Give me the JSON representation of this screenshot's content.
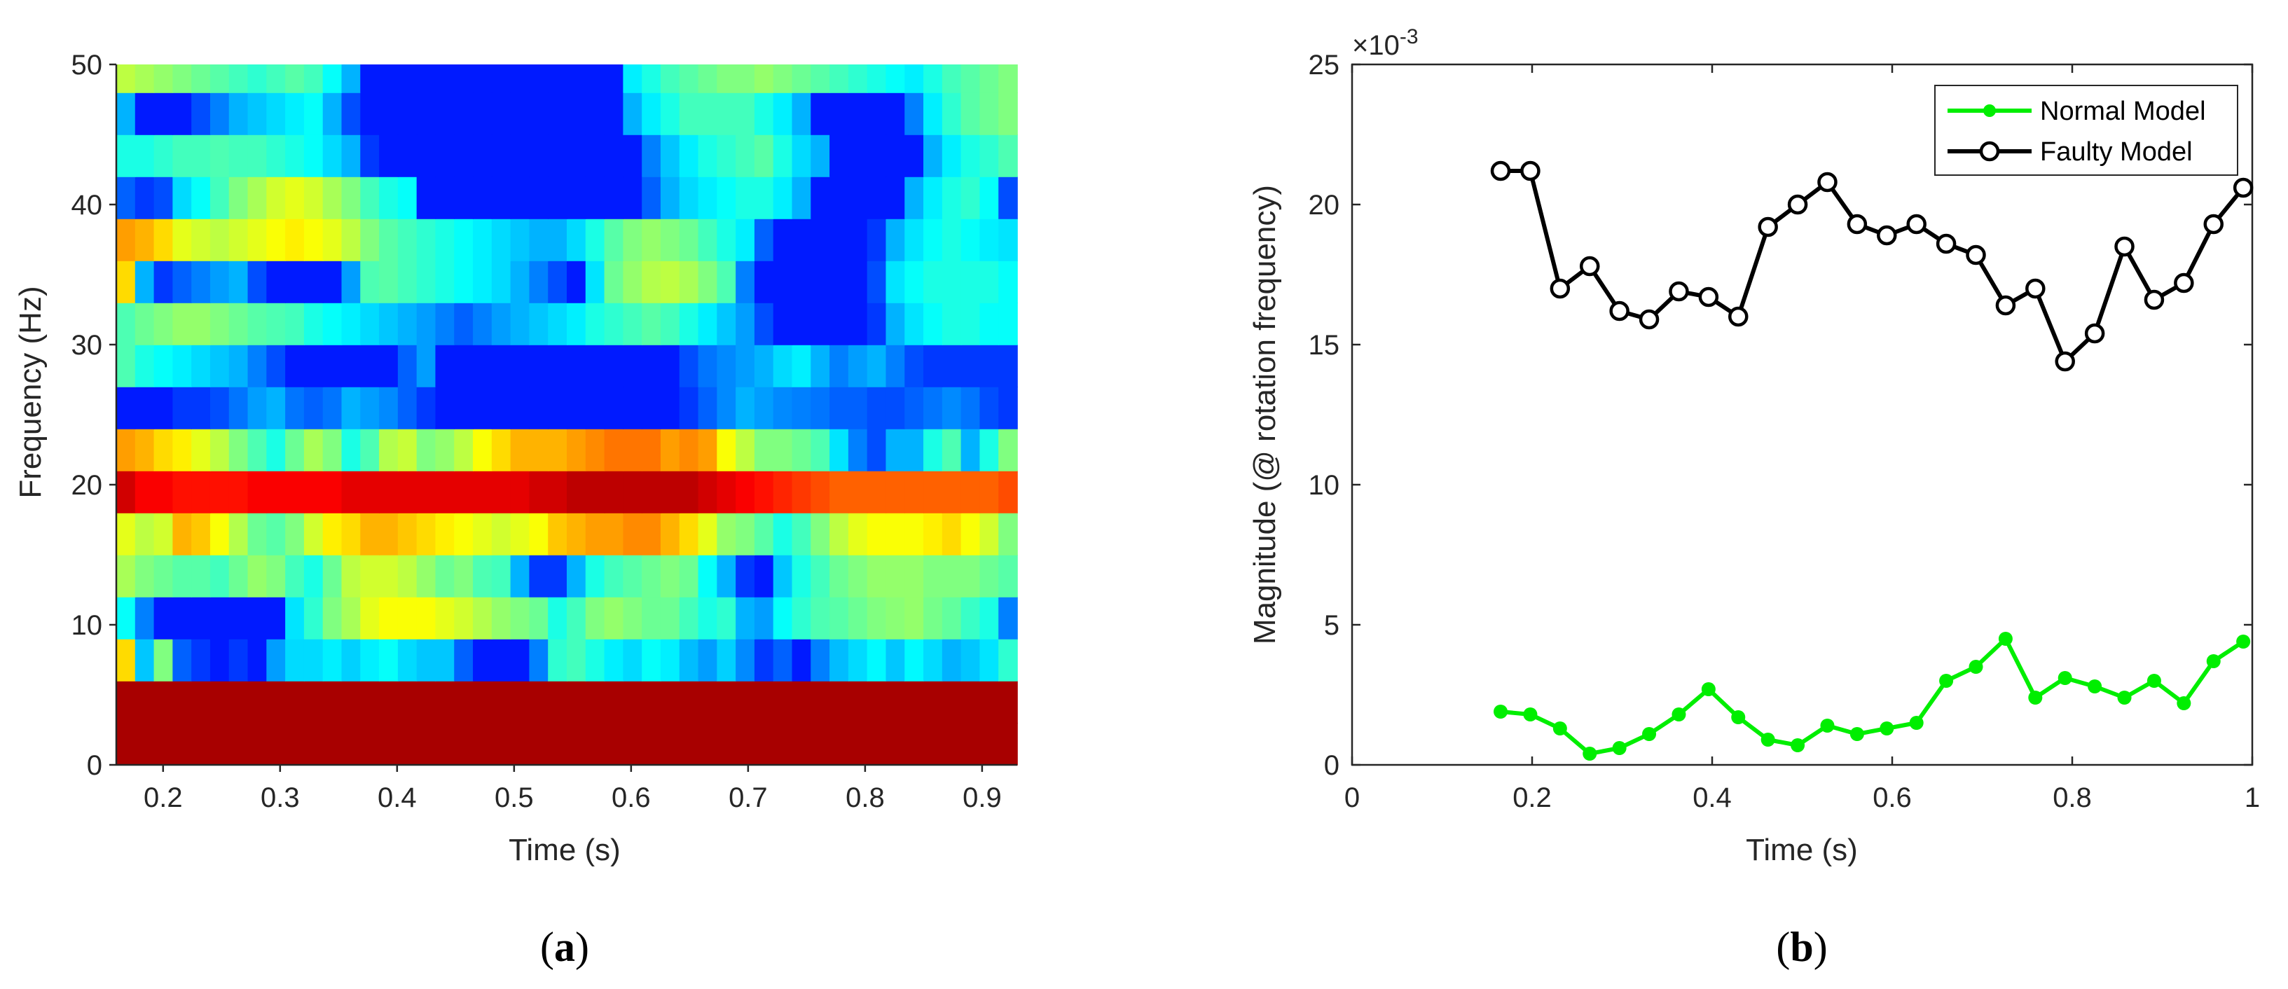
{
  "chart_data": [
    {
      "type": "heatmap",
      "panel_label": "a",
      "title": "",
      "xlabel": "Time (s)",
      "ylabel": "Frequency (Hz)",
      "xlim": [
        0.16,
        0.93
      ],
      "ylim": [
        0,
        50
      ],
      "xticks": [
        0.2,
        0.3,
        0.4,
        0.5,
        0.6,
        0.7,
        0.8,
        0.9
      ],
      "yticks": [
        0,
        10,
        20,
        30,
        40,
        50
      ],
      "xtick_labels": [
        "0.2",
        "0.3",
        "0.4",
        "0.5",
        "0.6",
        "0.7",
        "0.8",
        "0.9"
      ],
      "ytick_labels": [
        "0",
        "10",
        "20",
        "30",
        "40",
        "50"
      ],
      "colormap": "jet",
      "value_range": [
        0,
        1
      ],
      "row_centers_hz": [
        1.5,
        4.5,
        7.5,
        10.5,
        13.5,
        16.5,
        19.5,
        22.5,
        25.5,
        28.5,
        31.5,
        34.5,
        37.5,
        40.5,
        43.5,
        46.5,
        49.5
      ],
      "rows_low_to_high_freq": [
        [
          0.96,
          0.96,
          0.96,
          0.96,
          0.96,
          0.96,
          0.96,
          0.96,
          0.96,
          0.96,
          0.96,
          0.96,
          0.96,
          0.96,
          0.96,
          0.96,
          0.96,
          0.96,
          0.96,
          0.96,
          0.96,
          0.96,
          0.96,
          0.96,
          0.96,
          0.96,
          0.96,
          0.96,
          0.96,
          0.96,
          0.96,
          0.96,
          0.96,
          0.96,
          0.96,
          0.96,
          0.96,
          0.96,
          0.96,
          0.96,
          0.96,
          0.96,
          0.96,
          0.96,
          0.96,
          0.96,
          0.96,
          0.96
        ],
        [
          0.96,
          0.96,
          0.96,
          0.96,
          0.96,
          0.96,
          0.96,
          0.96,
          0.96,
          0.96,
          0.96,
          0.96,
          0.96,
          0.96,
          0.96,
          0.96,
          0.96,
          0.96,
          0.96,
          0.96,
          0.96,
          0.96,
          0.96,
          0.96,
          0.96,
          0.96,
          0.96,
          0.96,
          0.96,
          0.96,
          0.96,
          0.96,
          0.96,
          0.96,
          0.96,
          0.96,
          0.96,
          0.96,
          0.96,
          0.96,
          0.96,
          0.96,
          0.96,
          0.96,
          0.96,
          0.96,
          0.96,
          0.96
        ],
        [
          0.66,
          0.32,
          0.5,
          0.22,
          0.18,
          0.15,
          0.18,
          0.15,
          0.28,
          0.34,
          0.34,
          0.36,
          0.33,
          0.36,
          0.38,
          0.34,
          0.32,
          0.32,
          0.22,
          0.15,
          0.15,
          0.15,
          0.25,
          0.42,
          0.44,
          0.4,
          0.36,
          0.34,
          0.38,
          0.36,
          0.31,
          0.28,
          0.33,
          0.26,
          0.18,
          0.22,
          0.15,
          0.25,
          0.31,
          0.34,
          0.37,
          0.32,
          0.37,
          0.34,
          0.3,
          0.32,
          0.35,
          0.42
        ],
        [
          0.38,
          0.25,
          0.15,
          0.15,
          0.15,
          0.15,
          0.15,
          0.15,
          0.15,
          0.35,
          0.42,
          0.5,
          0.54,
          0.6,
          0.62,
          0.62,
          0.62,
          0.6,
          0.58,
          0.55,
          0.52,
          0.5,
          0.48,
          0.4,
          0.44,
          0.5,
          0.52,
          0.5,
          0.48,
          0.48,
          0.44,
          0.4,
          0.42,
          0.3,
          0.28,
          0.38,
          0.42,
          0.45,
          0.46,
          0.48,
          0.5,
          0.51,
          0.52,
          0.49,
          0.47,
          0.43,
          0.4,
          0.25
        ],
        [
          0.54,
          0.5,
          0.48,
          0.46,
          0.46,
          0.44,
          0.48,
          0.52,
          0.5,
          0.44,
          0.4,
          0.48,
          0.56,
          0.58,
          0.58,
          0.56,
          0.52,
          0.48,
          0.5,
          0.45,
          0.44,
          0.3,
          0.18,
          0.18,
          0.3,
          0.4,
          0.44,
          0.46,
          0.48,
          0.5,
          0.48,
          0.38,
          0.3,
          0.18,
          0.15,
          0.32,
          0.4,
          0.44,
          0.48,
          0.5,
          0.52,
          0.52,
          0.52,
          0.5,
          0.5,
          0.5,
          0.48,
          0.46
        ],
        [
          0.6,
          0.56,
          0.58,
          0.7,
          0.68,
          0.62,
          0.55,
          0.48,
          0.46,
          0.5,
          0.58,
          0.64,
          0.66,
          0.7,
          0.7,
          0.68,
          0.66,
          0.64,
          0.62,
          0.6,
          0.58,
          0.6,
          0.62,
          0.68,
          0.7,
          0.72,
          0.72,
          0.74,
          0.74,
          0.7,
          0.66,
          0.6,
          0.52,
          0.5,
          0.46,
          0.4,
          0.44,
          0.5,
          0.56,
          0.6,
          0.62,
          0.62,
          0.62,
          0.64,
          0.66,
          0.62,
          0.58,
          0.5
        ],
        [
          0.92,
          0.88,
          0.88,
          0.86,
          0.86,
          0.86,
          0.86,
          0.88,
          0.88,
          0.88,
          0.88,
          0.88,
          0.9,
          0.9,
          0.9,
          0.9,
          0.9,
          0.9,
          0.9,
          0.9,
          0.9,
          0.9,
          0.92,
          0.92,
          0.94,
          0.94,
          0.94,
          0.94,
          0.94,
          0.94,
          0.94,
          0.92,
          0.9,
          0.88,
          0.86,
          0.84,
          0.82,
          0.8,
          0.78,
          0.78,
          0.78,
          0.78,
          0.78,
          0.78,
          0.78,
          0.78,
          0.78,
          0.8
        ],
        [
          0.72,
          0.7,
          0.66,
          0.64,
          0.6,
          0.56,
          0.5,
          0.45,
          0.4,
          0.48,
          0.54,
          0.5,
          0.4,
          0.45,
          0.55,
          0.57,
          0.5,
          0.52,
          0.56,
          0.62,
          0.66,
          0.7,
          0.7,
          0.7,
          0.72,
          0.74,
          0.76,
          0.76,
          0.76,
          0.72,
          0.74,
          0.72,
          0.62,
          0.56,
          0.5,
          0.5,
          0.48,
          0.45,
          0.35,
          0.25,
          0.2,
          0.3,
          0.3,
          0.4,
          0.45,
          0.3,
          0.4,
          0.5
        ],
        [
          0.15,
          0.15,
          0.15,
          0.18,
          0.18,
          0.2,
          0.24,
          0.28,
          0.3,
          0.24,
          0.22,
          0.24,
          0.3,
          0.28,
          0.26,
          0.22,
          0.18,
          0.15,
          0.15,
          0.15,
          0.15,
          0.15,
          0.15,
          0.15,
          0.15,
          0.15,
          0.15,
          0.15,
          0.15,
          0.15,
          0.18,
          0.22,
          0.26,
          0.3,
          0.28,
          0.26,
          0.25,
          0.24,
          0.22,
          0.22,
          0.2,
          0.2,
          0.22,
          0.24,
          0.26,
          0.24,
          0.2,
          0.18
        ],
        [
          0.45,
          0.4,
          0.38,
          0.36,
          0.34,
          0.32,
          0.3,
          0.25,
          0.2,
          0.15,
          0.15,
          0.15,
          0.15,
          0.15,
          0.15,
          0.22,
          0.28,
          0.15,
          0.15,
          0.15,
          0.15,
          0.15,
          0.15,
          0.15,
          0.15,
          0.15,
          0.15,
          0.15,
          0.15,
          0.15,
          0.2,
          0.24,
          0.26,
          0.28,
          0.3,
          0.34,
          0.36,
          0.3,
          0.25,
          0.28,
          0.3,
          0.25,
          0.2,
          0.18,
          0.18,
          0.18,
          0.18,
          0.18
        ],
        [
          0.45,
          0.48,
          0.5,
          0.52,
          0.52,
          0.5,
          0.48,
          0.46,
          0.45,
          0.44,
          0.4,
          0.38,
          0.36,
          0.34,
          0.32,
          0.3,
          0.28,
          0.25,
          0.22,
          0.25,
          0.28,
          0.3,
          0.32,
          0.34,
          0.36,
          0.4,
          0.42,
          0.44,
          0.46,
          0.44,
          0.4,
          0.36,
          0.32,
          0.28,
          0.2,
          0.15,
          0.15,
          0.15,
          0.15,
          0.15,
          0.18,
          0.3,
          0.35,
          0.38,
          0.4,
          0.4,
          0.38,
          0.38
        ],
        [
          0.66,
          0.3,
          0.18,
          0.22,
          0.25,
          0.28,
          0.3,
          0.2,
          0.15,
          0.15,
          0.15,
          0.15,
          0.28,
          0.45,
          0.46,
          0.44,
          0.42,
          0.4,
          0.38,
          0.36,
          0.34,
          0.3,
          0.25,
          0.2,
          0.15,
          0.35,
          0.48,
          0.52,
          0.55,
          0.56,
          0.54,
          0.5,
          0.45,
          0.25,
          0.15,
          0.15,
          0.15,
          0.15,
          0.15,
          0.15,
          0.2,
          0.35,
          0.38,
          0.4,
          0.4,
          0.4,
          0.4,
          0.38
        ],
        [
          0.72,
          0.7,
          0.66,
          0.6,
          0.58,
          0.56,
          0.58,
          0.6,
          0.62,
          0.64,
          0.62,
          0.6,
          0.56,
          0.5,
          0.46,
          0.44,
          0.42,
          0.4,
          0.38,
          0.36,
          0.34,
          0.32,
          0.3,
          0.3,
          0.34,
          0.4,
          0.46,
          0.5,
          0.52,
          0.5,
          0.48,
          0.44,
          0.4,
          0.36,
          0.22,
          0.15,
          0.15,
          0.15,
          0.15,
          0.15,
          0.18,
          0.3,
          0.35,
          0.38,
          0.4,
          0.38,
          0.36,
          0.35
        ],
        [
          0.22,
          0.18,
          0.2,
          0.34,
          0.38,
          0.44,
          0.5,
          0.54,
          0.58,
          0.6,
          0.58,
          0.54,
          0.5,
          0.44,
          0.4,
          0.38,
          0.15,
          0.15,
          0.15,
          0.15,
          0.15,
          0.15,
          0.15,
          0.15,
          0.15,
          0.15,
          0.15,
          0.15,
          0.22,
          0.3,
          0.34,
          0.36,
          0.38,
          0.4,
          0.4,
          0.36,
          0.3,
          0.15,
          0.15,
          0.15,
          0.15,
          0.15,
          0.3,
          0.36,
          0.4,
          0.42,
          0.38,
          0.2
        ],
        [
          0.4,
          0.4,
          0.42,
          0.44,
          0.44,
          0.45,
          0.44,
          0.44,
          0.42,
          0.4,
          0.38,
          0.34,
          0.3,
          0.18,
          0.15,
          0.15,
          0.15,
          0.15,
          0.15,
          0.15,
          0.15,
          0.15,
          0.15,
          0.15,
          0.15,
          0.15,
          0.15,
          0.15,
          0.25,
          0.32,
          0.36,
          0.4,
          0.42,
          0.44,
          0.46,
          0.4,
          0.34,
          0.3,
          0.15,
          0.15,
          0.15,
          0.15,
          0.15,
          0.3,
          0.36,
          0.4,
          0.42,
          0.45
        ],
        [
          0.3,
          0.15,
          0.15,
          0.15,
          0.2,
          0.25,
          0.3,
          0.32,
          0.34,
          0.36,
          0.38,
          0.3,
          0.2,
          0.15,
          0.15,
          0.15,
          0.15,
          0.15,
          0.15,
          0.15,
          0.15,
          0.15,
          0.15,
          0.15,
          0.15,
          0.15,
          0.15,
          0.3,
          0.36,
          0.4,
          0.44,
          0.44,
          0.44,
          0.44,
          0.4,
          0.36,
          0.3,
          0.15,
          0.15,
          0.15,
          0.15,
          0.15,
          0.25,
          0.36,
          0.42,
          0.46,
          0.48,
          0.5
        ],
        [
          0.56,
          0.54,
          0.52,
          0.5,
          0.48,
          0.46,
          0.44,
          0.42,
          0.44,
          0.46,
          0.44,
          0.38,
          0.3,
          0.15,
          0.15,
          0.15,
          0.15,
          0.15,
          0.15,
          0.15,
          0.15,
          0.15,
          0.15,
          0.15,
          0.15,
          0.15,
          0.15,
          0.36,
          0.4,
          0.44,
          0.46,
          0.48,
          0.5,
          0.5,
          0.52,
          0.5,
          0.48,
          0.46,
          0.44,
          0.42,
          0.4,
          0.38,
          0.36,
          0.4,
          0.44,
          0.46,
          0.48,
          0.5
        ]
      ]
    },
    {
      "type": "line",
      "panel_label": "b",
      "title": "",
      "xlabel": "Time (s)",
      "ylabel": "Magnitude (@ rotation frequency)",
      "exponent_label": "×10",
      "exponent_power": "-3",
      "xlim": [
        0,
        1
      ],
      "ylim": [
        0,
        25
      ],
      "xticks": [
        0,
        0.2,
        0.4,
        0.6,
        0.8,
        1
      ],
      "yticks": [
        0,
        5,
        10,
        15,
        20,
        25
      ],
      "xtick_labels": [
        "0",
        "0.2",
        "0.4",
        "0.6",
        "0.8",
        "1"
      ],
      "ytick_labels": [
        "0",
        "5",
        "10",
        "15",
        "20",
        "25"
      ],
      "legend_position": "top-right",
      "x": [
        0.165,
        0.198,
        0.231,
        0.264,
        0.297,
        0.33,
        0.363,
        0.396,
        0.429,
        0.462,
        0.495,
        0.528,
        0.561,
        0.594,
        0.627,
        0.66,
        0.693,
        0.726,
        0.759,
        0.792,
        0.825,
        0.858,
        0.891,
        0.924,
        0.957,
        0.99
      ],
      "series": [
        {
          "name": "Normal Model",
          "color": "#00ee00",
          "marker": "filled-circle",
          "values": [
            1.9,
            1.8,
            1.3,
            0.4,
            0.6,
            1.1,
            1.8,
            2.7,
            1.7,
            0.9,
            0.7,
            1.4,
            1.1,
            1.3,
            1.5,
            3.0,
            3.5,
            4.5,
            2.4,
            3.1,
            2.8,
            2.4,
            3.0,
            2.2,
            3.7,
            4.4
          ]
        },
        {
          "name": "Faulty Model",
          "color": "#000000",
          "marker": "open-circle",
          "values": [
            21.2,
            21.2,
            17.0,
            17.8,
            16.2,
            15.9,
            16.9,
            16.7,
            16.0,
            19.2,
            20.0,
            20.8,
            19.3,
            18.9,
            19.3,
            18.6,
            18.2,
            16.4,
            17.0,
            14.4,
            15.4,
            18.5,
            16.6,
            17.2,
            19.3,
            20.6
          ]
        }
      ]
    }
  ]
}
